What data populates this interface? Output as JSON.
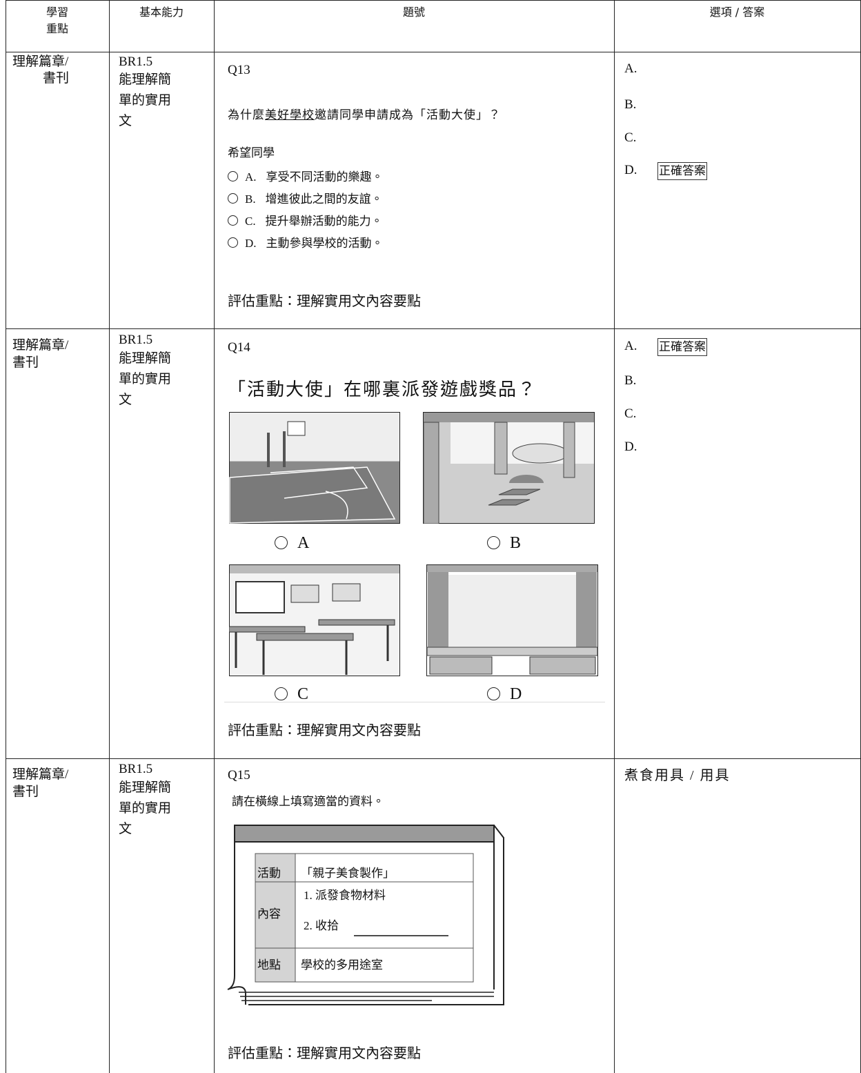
{
  "table": {
    "header": [
      [
        "學習",
        "重點"
      ],
      "基本能力",
      "題號",
      "選項 / 答案"
    ],
    "rows": [
      {
        "focus": [
          "理解篇章/",
          "書刊"
        ],
        "ability_code": "BR1.5",
        "ability": [
          "能理解簡",
          "單的實用",
          "文"
        ],
        "question": {
          "id": "Q13",
          "text": [
            "為什麼",
            "美好學校",
            "邀請同學申請成為「活動大使」？"
          ],
          "stem": "希望同學",
          "options": [
            {
              "letter": "A.",
              "text": "享受不同活動的樂趣。"
            },
            {
              "letter": "B.",
              "text": "增進彼此之間的友誼。"
            },
            {
              "letter": "C.",
              "text": "提升舉辦活動的能力。"
            },
            {
              "letter": "D.",
              "text": "主動參與學校的活動。"
            }
          ],
          "focus": "評估重點：理解實用文內容要點"
        },
        "answers": [
          "A.",
          "B.",
          "C.",
          "D."
        ],
        "correct_label": "正確答案"
      },
      {
        "focus": [
          "理解篇章/",
          "書刊"
        ],
        "ability_code": "BR1.5",
        "ability": [
          "能理解簡",
          "單的實用",
          "文"
        ],
        "question": {
          "id": "Q14",
          "text": "「活動大使」在哪裏派發遊戲獎品？",
          "pictures": [
            "A",
            "B",
            "C",
            "D"
          ],
          "focus": "評估重點：理解實用文內容要點"
        },
        "answers": [
          "A.",
          "B.",
          "C.",
          "D."
        ],
        "correct_label": "正確答案"
      },
      {
        "focus": [
          "理解篇章/",
          "書刊"
        ],
        "ability_code": "BR1.5",
        "ability": [
          "能理解簡",
          "單的實用",
          "文"
        ],
        "question": {
          "id": "Q15",
          "text": "請在橫線上填寫適當的資料。",
          "notice": [
            {
              "label": "活動",
              "content": [
                "「親子美食製作」"
              ]
            },
            {
              "label": "內容",
              "content": [
                "1. 派發食物材料",
                "2. 收拾"
              ]
            },
            {
              "label": "地點",
              "content": [
                "學校的多用途室"
              ]
            }
          ],
          "focus": "評估重點：理解實用文內容要點"
        },
        "answer": "煮食用具 / 用具"
      }
    ]
  }
}
